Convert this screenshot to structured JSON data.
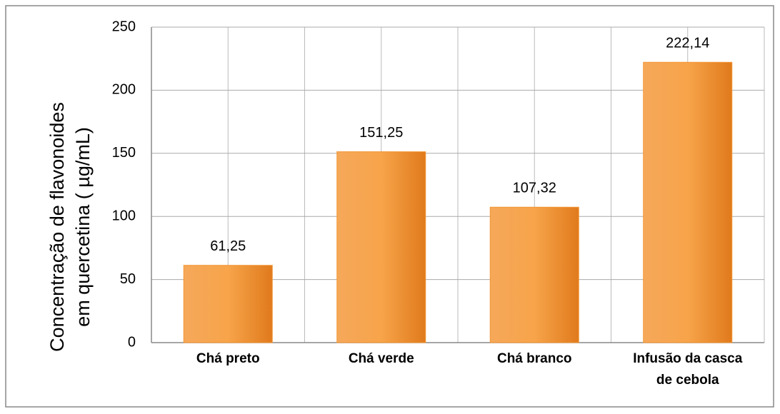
{
  "chart_data": {
    "type": "bar",
    "ylabel": [
      "Concentração de flavonoides",
      "em quercetina ( µg/mL)"
    ],
    "categories": [
      "Chá preto",
      "Chá verde",
      "Chá branco",
      "Infusão da casca de cebola"
    ],
    "values": [
      61.25,
      151.25,
      107.32,
      222.14
    ],
    "value_labels": [
      "61,25",
      "151,25",
      "107,32",
      "222,14"
    ],
    "color": "#f29533",
    "ylim": [
      0,
      250
    ],
    "yticks": [
      0,
      50,
      100,
      150,
      200,
      250
    ],
    "grid": true
  }
}
